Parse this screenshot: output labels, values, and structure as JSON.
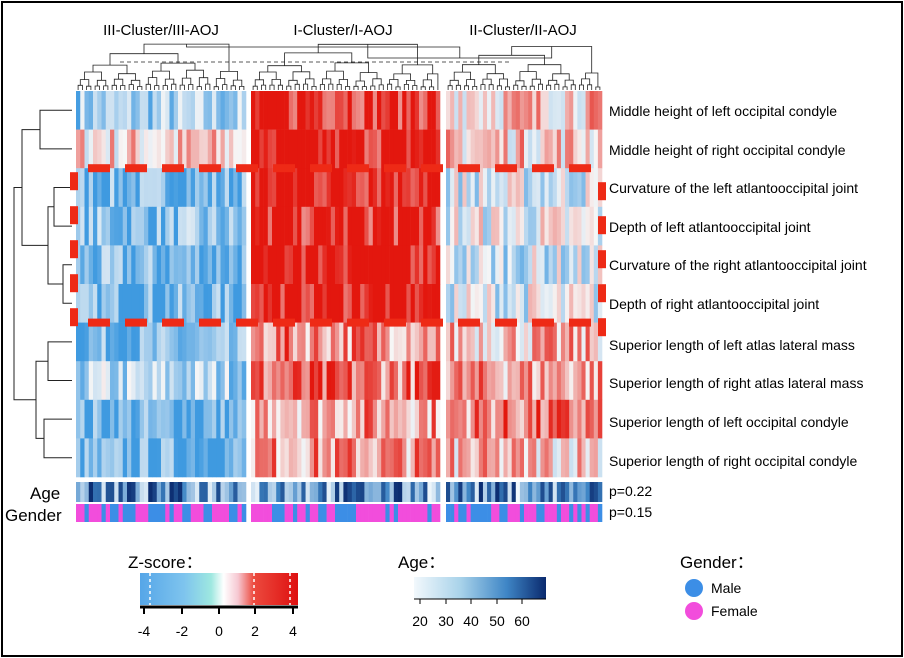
{
  "chart_data": {
    "type": "heatmap",
    "title": "",
    "clusters": [
      {
        "label": "III-Cluster/III-AOJ",
        "columns": 40
      },
      {
        "label": "I-Cluster/I-AOJ",
        "columns": 45
      },
      {
        "label": "II-Cluster/II-AOJ",
        "columns": 38
      }
    ],
    "rows": [
      "Middle height of left occipital condyle",
      "Middle height of right occipital condyle",
      "Curvature of the left atlantooccipital joint",
      "Depth of left atlantooccipital joint",
      "Curvature of the right atlantooccipital joint",
      "Depth of right atlantooccipital joint",
      "Superior length of left atlas lateral mass",
      "Superior length of right atlas lateral mass",
      "Superior length of left occipital condyle",
      "Superior length of right occipital condyle"
    ],
    "row_cluster_mean_zscore": [
      [
        -1.5,
        3.0,
        0.8
      ],
      [
        0.5,
        3.2,
        0.7
      ],
      [
        -2.2,
        3.3,
        -0.6
      ],
      [
        -2.0,
        3.0,
        -0.3
      ],
      [
        -2.2,
        3.5,
        -0.8
      ],
      [
        -2.3,
        3.4,
        -0.5
      ],
      [
        -2.3,
        1.6,
        0.9
      ],
      [
        -1.3,
        1.8,
        1.3
      ],
      [
        -2.4,
        1.4,
        1.7
      ],
      [
        -2.4,
        1.4,
        0.8
      ]
    ],
    "highlighted_rows": [
      2,
      5
    ],
    "annotation_tracks": [
      {
        "name": "Age",
        "p_value": "p=0.22"
      },
      {
        "name": "Gender",
        "p_value": "p=0.15"
      }
    ],
    "legends": {
      "zscore": {
        "title": "Z-score：",
        "ticks": [
          "-4",
          "-2",
          "0",
          "2",
          "4"
        ],
        "range": [
          -4,
          4
        ]
      },
      "age": {
        "title": "Age：",
        "ticks": [
          "20",
          "30",
          "40",
          "50",
          "60"
        ],
        "range": [
          18,
          68
        ]
      },
      "gender": {
        "title": "Gender：",
        "entries": [
          "Male",
          "Female"
        ]
      }
    }
  },
  "colors": {
    "low": "#3f9ae0",
    "mid": "#f6f6f6",
    "high": "#e3170e",
    "male": "#3c8ee6",
    "female": "#f24ddc",
    "highlight": "#ee2a16",
    "age_low": "#f2f8fc",
    "age_high": "#0a2a6e"
  }
}
